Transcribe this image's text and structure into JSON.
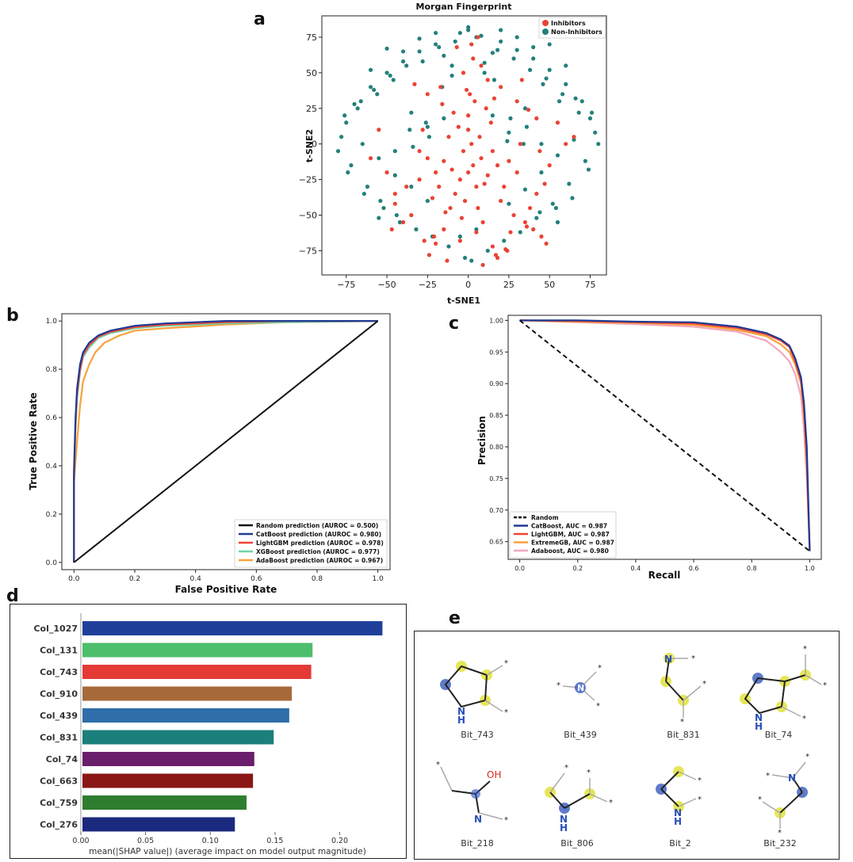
{
  "panel_letters": {
    "a": "a",
    "b": "b",
    "c": "c",
    "d": "d",
    "e": "e"
  },
  "colors": {
    "inhibitor": "#ea4335",
    "non_inhibitor": "#23807b",
    "random_line": "#111111",
    "catboost": "#1f3a93",
    "lightgbm": "#ef4436",
    "xgboost": "#6fd3a8",
    "adaboost": "#f7a23c",
    "adaboost_pr": "#f2a7bd",
    "mol_highlight": "#e6e65a",
    "mol_nitrogen": "#2a4fb8",
    "mol_oxygen": "#d9281f"
  },
  "chart_data": [
    {
      "panel": "a",
      "type": "scatter",
      "title": "Morgan Fingerprint",
      "xlabel": "t-SNE1",
      "ylabel": "t-SNE2",
      "xlim": [
        -90,
        85
      ],
      "ylim": [
        -92,
        90
      ],
      "xticks": [
        "−75",
        "−50",
        "−25",
        "0",
        "25",
        "50",
        "75"
      ],
      "yticks": [
        "−75",
        "−50",
        "−25",
        "0",
        "25",
        "50",
        "75"
      ],
      "xtick_values": [
        -75,
        -50,
        -25,
        0,
        25,
        50,
        75
      ],
      "ytick_values": [
        -75,
        -50,
        -25,
        0,
        25,
        50,
        75
      ],
      "legend": [
        "Inhibitors",
        "Non-Inhibitors"
      ],
      "legend_position": "top-right",
      "series": [
        {
          "name": "Inhibitors",
          "x": [
            0,
            3,
            -5,
            8,
            -10,
            12,
            -3,
            5,
            -15,
            15,
            2,
            -8,
            10,
            -20,
            18,
            0,
            -12,
            7,
            -2,
            22,
            -18,
            6,
            -6,
            14,
            -25,
            25,
            0,
            -9,
            11,
            -14,
            4,
            -4,
            16,
            -16,
            9,
            -11,
            20,
            -22,
            1,
            -1,
            30,
            -30,
            28,
            35,
            40,
            45,
            38,
            42,
            48,
            -35,
            -40,
            -45,
            -30,
            32,
            -28,
            26,
            36,
            -20,
            -17,
            5,
            -5,
            15,
            -15,
            44,
            50,
            -50,
            47,
            42,
            37,
            30,
            -38,
            -45,
            -47,
            12,
            8,
            -3,
            3,
            -25,
            20,
            60,
            65,
            -60,
            55,
            -55,
            33,
            -33,
            24,
            -24,
            18,
            -13,
            2,
            6,
            -7,
            9,
            17,
            23,
            -21,
            -27
          ],
          "y": [
            -20,
            -15,
            -25,
            -10,
            -18,
            -22,
            -5,
            -30,
            -12,
            -5,
            0,
            -35,
            -28,
            -20,
            -15,
            10,
            5,
            5,
            -40,
            -30,
            -30,
            -45,
            12,
            15,
            -10,
            -12,
            20,
            22,
            25,
            -48,
            30,
            -52,
            32,
            28,
            -55,
            -45,
            -40,
            -38,
            35,
            38,
            -20,
            -25,
            -50,
            -55,
            -60,
            -65,
            -45,
            -35,
            -70,
            -50,
            -55,
            -42,
            -5,
            0,
            10,
            -62,
            -58,
            -70,
            40,
            -62,
            -68,
            -72,
            -60,
            -5,
            -15,
            -20,
            -28,
            18,
            24,
            30,
            -30,
            -35,
            -60,
            45,
            55,
            50,
            60,
            35,
            40,
            0,
            5,
            -10,
            15,
            10,
            45,
            42,
            -75,
            -78,
            -80,
            -82,
            70,
            75,
            68,
            -85,
            -78,
            -74,
            -65,
            -68
          ]
        },
        {
          "name": "Non-Inhibitors",
          "x": [
            -5,
            0,
            5,
            -20,
            20,
            -30,
            30,
            -40,
            40,
            -50,
            50,
            -60,
            60,
            -70,
            70,
            -75,
            75,
            -65,
            65,
            -55,
            55,
            -45,
            45,
            -35,
            35,
            -25,
            25,
            -15,
            15,
            -10,
            10,
            -78,
            78,
            -72,
            72,
            -68,
            68,
            -62,
            62,
            -58,
            58,
            -52,
            52,
            -48,
            48,
            -42,
            42,
            -38,
            38,
            -32,
            32,
            -28,
            28,
            -22,
            22,
            -18,
            18,
            -12,
            12,
            -8,
            8,
            -2,
            2,
            -80,
            80,
            -76,
            76,
            -74,
            74,
            -66,
            66,
            -64,
            64,
            -56,
            56,
            -54,
            54,
            -46,
            46,
            -44,
            44,
            -36,
            36,
            -34,
            34,
            -26,
            26,
            -24,
            24,
            -16,
            16,
            0,
            30,
            -30,
            50,
            -50,
            20,
            -20,
            40,
            -40,
            10,
            -10,
            60,
            -60,
            35,
            -35,
            45,
            -45,
            25,
            -25,
            15,
            -15,
            55,
            -55,
            5,
            -5
          ],
          "y": [
            78,
            80,
            75,
            70,
            72,
            65,
            66,
            58,
            60,
            50,
            52,
            40,
            42,
            28,
            30,
            15,
            18,
            0,
            3,
            -10,
            -8,
            -22,
            -20,
            -30,
            -32,
            -40,
            -42,
            62,
            64,
            55,
            57,
            5,
            8,
            -15,
            -12,
            25,
            22,
            -30,
            -28,
            38,
            35,
            -45,
            -42,
            48,
            46,
            -55,
            -52,
            55,
            52,
            -60,
            -62,
            58,
            60,
            -65,
            -68,
            68,
            66,
            -72,
            -75,
            72,
            76,
            -80,
            -82,
            -5,
            0,
            20,
            22,
            -20,
            -18,
            30,
            32,
            -35,
            -38,
            35,
            30,
            -40,
            -45,
            45,
            42,
            -50,
            -48,
            10,
            12,
            -2,
            0,
            15,
            18,
            5,
            2,
            40,
            45,
            82,
            75,
            74,
            70,
            67,
            80,
            78,
            68,
            65,
            50,
            48,
            55,
            52,
            25,
            22,
            0,
            -5,
            8,
            12,
            20,
            18,
            -55,
            -52,
            -60,
            -65
          ]
        }
      ]
    },
    {
      "panel": "b",
      "type": "line",
      "xlabel": "False Positive Rate",
      "ylabel": "True Positive Rate",
      "xlim": [
        -0.04,
        1.04
      ],
      "ylim": [
        -0.03,
        1.03
      ],
      "xticks": [
        "0.0",
        "0.2",
        "0.4",
        "0.6",
        "0.8",
        "1.0"
      ],
      "yticks": [
        "0.0",
        "0.2",
        "0.4",
        "0.6",
        "0.8",
        "1.0"
      ],
      "tick_values": [
        0,
        0.2,
        0.4,
        0.6,
        0.8,
        1.0
      ],
      "legend_position": "bottom-right",
      "series": [
        {
          "name": "Random prediction (AUROC = 0.500)",
          "color_key": "random_line",
          "x": [
            0,
            1
          ],
          "y": [
            0,
            1
          ]
        },
        {
          "name": "CatBoost prediction  (AUROC = 0.980)",
          "color_key": "catboost",
          "x": [
            0,
            0,
            0.005,
            0.01,
            0.02,
            0.03,
            0.05,
            0.08,
            0.12,
            0.2,
            0.3,
            0.5,
            0.7,
            1.0
          ],
          "y": [
            0,
            0.38,
            0.6,
            0.72,
            0.82,
            0.87,
            0.91,
            0.94,
            0.96,
            0.98,
            0.99,
            1.0,
            1.0,
            1.0
          ]
        },
        {
          "name": "LightGBM prediction (AUROC = 0.978)",
          "color_key": "lightgbm",
          "x": [
            0,
            0,
            0.005,
            0.01,
            0.02,
            0.03,
            0.05,
            0.08,
            0.12,
            0.2,
            0.3,
            0.5,
            0.7,
            1.0
          ],
          "y": [
            0,
            0.35,
            0.58,
            0.7,
            0.8,
            0.86,
            0.9,
            0.935,
            0.955,
            0.975,
            0.985,
            0.995,
            1.0,
            1.0
          ]
        },
        {
          "name": "XGBoost prediction  (AUROC = 0.977)",
          "color_key": "xgboost",
          "x": [
            0,
            0,
            0.005,
            0.01,
            0.02,
            0.03,
            0.05,
            0.08,
            0.12,
            0.2,
            0.3,
            0.5,
            0.7,
            1.0
          ],
          "y": [
            0,
            0.36,
            0.56,
            0.68,
            0.79,
            0.85,
            0.89,
            0.93,
            0.95,
            0.97,
            0.98,
            0.99,
            0.995,
            1.0
          ]
        },
        {
          "name": "AdaBoost prediction  (AUROC = 0.967)",
          "color_key": "adaboost",
          "x": [
            0,
            0,
            0.01,
            0.02,
            0.03,
            0.05,
            0.07,
            0.1,
            0.15,
            0.2,
            0.3,
            0.5,
            0.7,
            1.0
          ],
          "y": [
            0,
            0.33,
            0.5,
            0.65,
            0.75,
            0.82,
            0.87,
            0.91,
            0.94,
            0.96,
            0.97,
            0.985,
            0.995,
            1.0
          ]
        }
      ]
    },
    {
      "panel": "c",
      "type": "line",
      "xlabel": "Recall",
      "ylabel": "Precision",
      "xlim": [
        -0.04,
        1.04
      ],
      "ylim": [
        0.622,
        1.008
      ],
      "xticks": [
        "0.0",
        "0.2",
        "0.4",
        "0.6",
        "0.8",
        "1.0"
      ],
      "xtick_values": [
        0,
        0.2,
        0.4,
        0.6,
        0.8,
        1.0
      ],
      "yticks": [
        "0.65",
        "0.70",
        "0.75",
        "0.80",
        "0.85",
        "0.90",
        "0.95",
        "1.00"
      ],
      "ytick_values": [
        0.65,
        0.7,
        0.75,
        0.8,
        0.85,
        0.9,
        0.95,
        1.0
      ],
      "legend_position": "bottom-left",
      "series": [
        {
          "name": "Random",
          "color_key": "random_line",
          "dashed": true,
          "x": [
            0,
            1
          ],
          "y": [
            1.0,
            0.635
          ]
        },
        {
          "name": "CatBoost, AUC = 0.987",
          "color_key": "catboost",
          "x": [
            0,
            0.2,
            0.4,
            0.6,
            0.75,
            0.85,
            0.9,
            0.93,
            0.95,
            0.97,
            0.98,
            0.99,
            1.0
          ],
          "y": [
            1.0,
            1.0,
            0.998,
            0.997,
            0.99,
            0.98,
            0.97,
            0.96,
            0.94,
            0.91,
            0.87,
            0.8,
            0.635
          ]
        },
        {
          "name": "LightGBM, AUC = 0.987",
          "color_key": "lightgbm",
          "x": [
            0,
            0.2,
            0.4,
            0.6,
            0.75,
            0.85,
            0.9,
            0.93,
            0.95,
            0.97,
            0.98,
            0.99,
            1.0
          ],
          "y": [
            1.0,
            0.999,
            0.997,
            0.995,
            0.988,
            0.978,
            0.968,
            0.958,
            0.935,
            0.905,
            0.86,
            0.78,
            0.635
          ]
        },
        {
          "name": "ExtremeGB, AUC = 0.987",
          "color_key": "adaboost",
          "x": [
            0,
            0.2,
            0.4,
            0.6,
            0.75,
            0.85,
            0.9,
            0.93,
            0.95,
            0.97,
            0.98,
            0.99,
            1.0
          ],
          "y": [
            1.0,
            0.998,
            0.996,
            0.993,
            0.985,
            0.975,
            0.962,
            0.95,
            0.93,
            0.9,
            0.85,
            0.77,
            0.635
          ]
        },
        {
          "name": "Adaboost, AUC = 0.980",
          "color_key": "adaboost_pr",
          "x": [
            0,
            0.2,
            0.4,
            0.6,
            0.75,
            0.85,
            0.9,
            0.93,
            0.95,
            0.97,
            0.98,
            0.99,
            1.0
          ],
          "y": [
            1.0,
            0.997,
            0.994,
            0.99,
            0.982,
            0.968,
            0.95,
            0.935,
            0.915,
            0.88,
            0.83,
            0.75,
            0.635
          ]
        }
      ]
    },
    {
      "panel": "d",
      "type": "bar",
      "orientation": "horizontal",
      "xlabel": "mean(|SHAP value|) (average impact on model output magnitude)",
      "xlim": [
        0,
        0.245
      ],
      "xticks": [
        "0.00",
        "0.05",
        "0.10",
        "0.15",
        "0.20"
      ],
      "xtick_values": [
        0,
        0.05,
        0.1,
        0.15,
        0.2
      ],
      "categories": [
        "Col_1027",
        "Col_131",
        "Col_743",
        "Col_910",
        "Col_439",
        "Col_831",
        "Col_74",
        "Col_663",
        "Col_759",
        "Col_276"
      ],
      "values": [
        0.233,
        0.179,
        0.178,
        0.163,
        0.161,
        0.149,
        0.134,
        0.133,
        0.128,
        0.119
      ],
      "bar_colors": [
        "#1f3f9a",
        "#4cbe6c",
        "#e33a36",
        "#a66a3b",
        "#2f6ea8",
        "#1b7f7c",
        "#6b1e6b",
        "#8a1616",
        "#2e7d2f",
        "#1b2a7e"
      ]
    }
  ],
  "molecules": {
    "fragments": [
      {
        "label": "Bit_743"
      },
      {
        "label": "Bit_439"
      },
      {
        "label": "Bit_831"
      },
      {
        "label": "Bit_74"
      },
      {
        "label": "Bit_218"
      },
      {
        "label": "Bit_806"
      },
      {
        "label": "Bit_2"
      },
      {
        "label": "Bit_232"
      }
    ],
    "atoms": {
      "n": "N",
      "h": "H",
      "oh": "OH",
      "star": "*"
    }
  }
}
